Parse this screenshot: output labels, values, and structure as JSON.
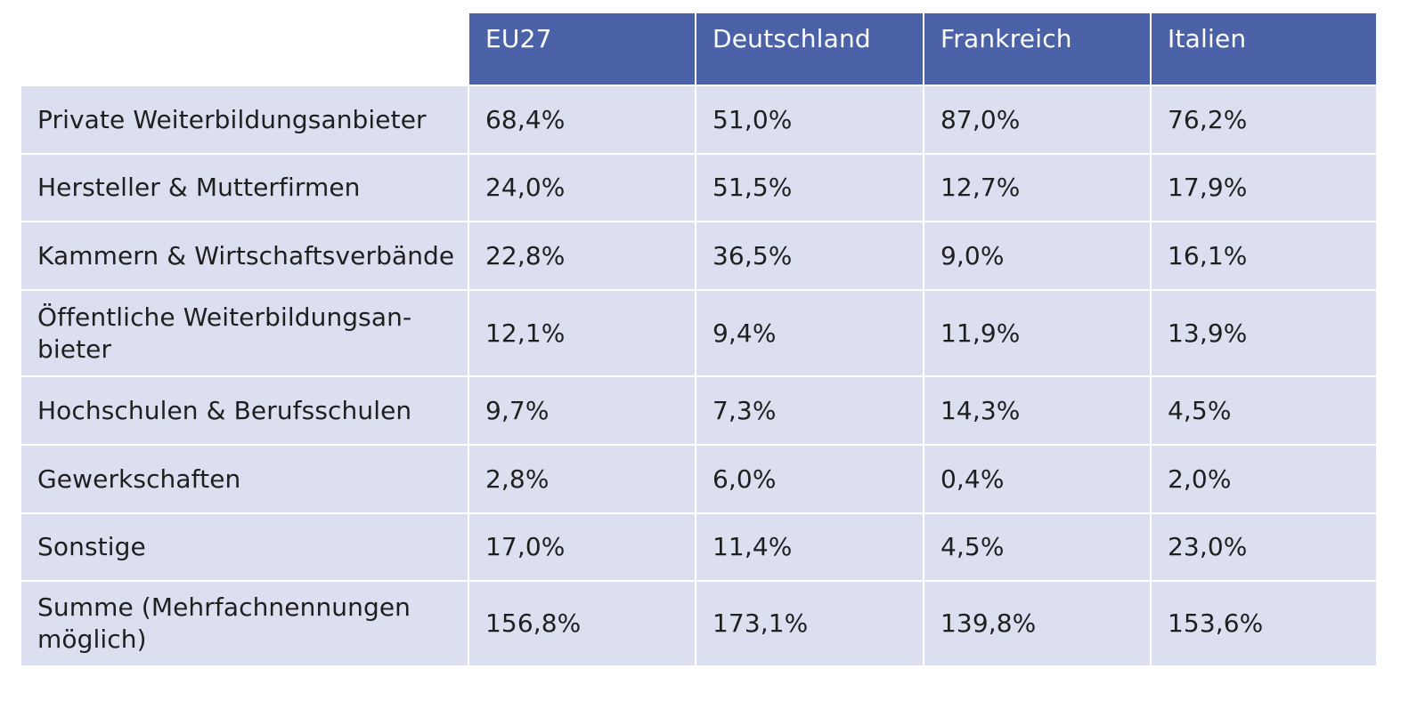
{
  "columns": [
    "EU27",
    "Deutschland",
    "Frankreich",
    "Italien"
  ],
  "rows": [
    {
      "label": "Private Weiterbildungsanbieter",
      "values": [
        "68,4%",
        "51,0%",
        "87,0%",
        "76,2%"
      ]
    },
    {
      "label": "Hersteller & Mutterfirmen",
      "values": [
        "24,0%",
        "51,5%",
        "12,7%",
        "17,9%"
      ]
    },
    {
      "label": "Kammern & Wirtschaftsverbände",
      "values": [
        "22,8%",
        "36,5%",
        "9,0%",
        "16,1%"
      ]
    },
    {
      "label": "Öffentliche Weiterbildungsan-\nbieter",
      "values": [
        "12,1%",
        "9,4%",
        "11,9%",
        "13,9%"
      ]
    },
    {
      "label": "Hochschulen & Berufsschulen",
      "values": [
        "9,7%",
        "7,3%",
        "14,3%",
        "4,5%"
      ]
    },
    {
      "label": "Gewerkschaften",
      "values": [
        "2,8%",
        "6,0%",
        "0,4%",
        "2,0%"
      ]
    },
    {
      "label": "Sonstige",
      "values": [
        "17,0%",
        "11,4%",
        "4,5%",
        "23,0%"
      ]
    },
    {
      "label": "Summe (Mehrfachnennungen\nmöglich)",
      "values": [
        "156,8%",
        "173,1%",
        "139,8%",
        "153,6%"
      ]
    }
  ],
  "colors": {
    "header_bg": "#4b62a8",
    "header_text": "#ffffff",
    "cell_bg": "#dbdff0",
    "cell_text": "#1f1f1f"
  }
}
